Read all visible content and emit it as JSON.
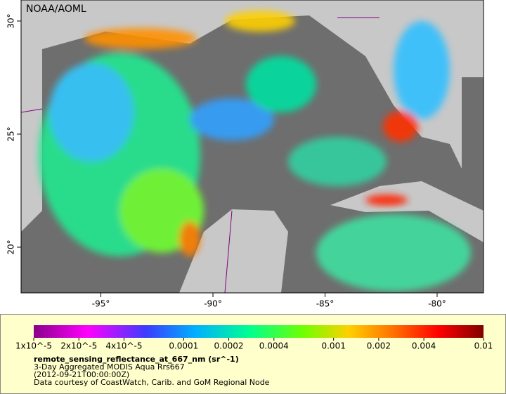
{
  "map": {
    "credit": "NOAA/AOML",
    "xlim": [
      -98.56,
      -77.93
    ],
    "ylim": [
      17.98,
      30.93
    ],
    "xticks": [
      {
        "value": -95,
        "label": "-95°"
      },
      {
        "value": -90,
        "label": "-90°"
      },
      {
        "value": -85,
        "label": "-85°"
      },
      {
        "value": -80,
        "label": "-80°"
      }
    ],
    "yticks": [
      {
        "value": 30,
        "label": "30°"
      },
      {
        "value": 25,
        "label": "25°"
      },
      {
        "value": 20,
        "label": "20°"
      }
    ]
  },
  "colorbar": {
    "scale": "log",
    "lim": [
      1e-05,
      0.01
    ],
    "ticks": [
      {
        "value": 1e-05,
        "label": "1x10^-5"
      },
      {
        "value": 2e-05,
        "label": "2x10^-5"
      },
      {
        "value": 4e-05,
        "label": "4x10^-5"
      },
      0.0001,
      0.0002,
      0.0004,
      0.001,
      0.002,
      0.004,
      0.01
    ]
  },
  "caption": {
    "variable": "remote_sensing_reflectance_at_667_nm (sr^-1)",
    "lines": [
      "3-Day Aggregated MODIS Aqua Rrs667",
      "(2012-09-21T00:00:00Z)",
      "Data courtesy of CoastWatch, Carib. and GoM Regional Node"
    ]
  }
}
